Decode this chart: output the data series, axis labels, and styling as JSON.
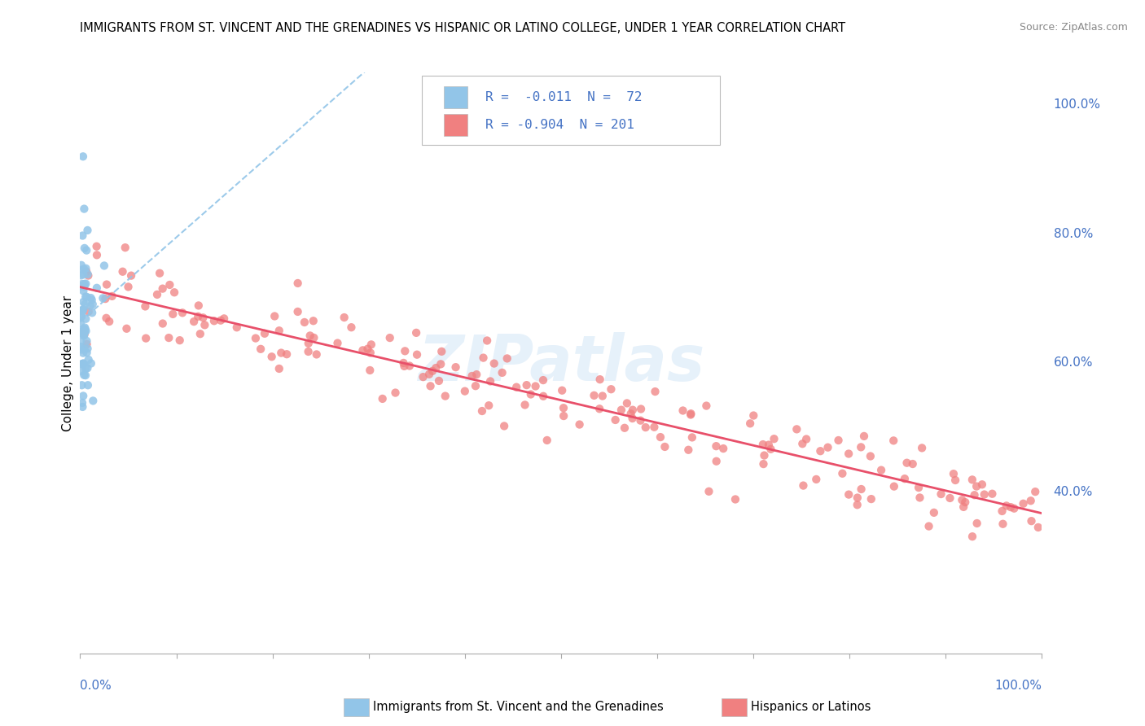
{
  "title": "IMMIGRANTS FROM ST. VINCENT AND THE GRENADINES VS HISPANIC OR LATINO COLLEGE, UNDER 1 YEAR CORRELATION CHART",
  "source": "Source: ZipAtlas.com",
  "ylabel": "College, Under 1 year",
  "color_blue": "#92C5E8",
  "color_pink": "#F08080",
  "color_blue_line": "#92C5E8",
  "color_pink_line": "#E8506A",
  "watermark": "ZIPatlas",
  "right_labels": [
    [
      "100.0%",
      1.0
    ],
    [
      "80.0%",
      0.8
    ],
    [
      "60.0%",
      0.6
    ],
    [
      "40.0%",
      0.4
    ]
  ],
  "xlim": [
    0.0,
    1.0
  ],
  "ylim": [
    0.15,
    1.05
  ]
}
